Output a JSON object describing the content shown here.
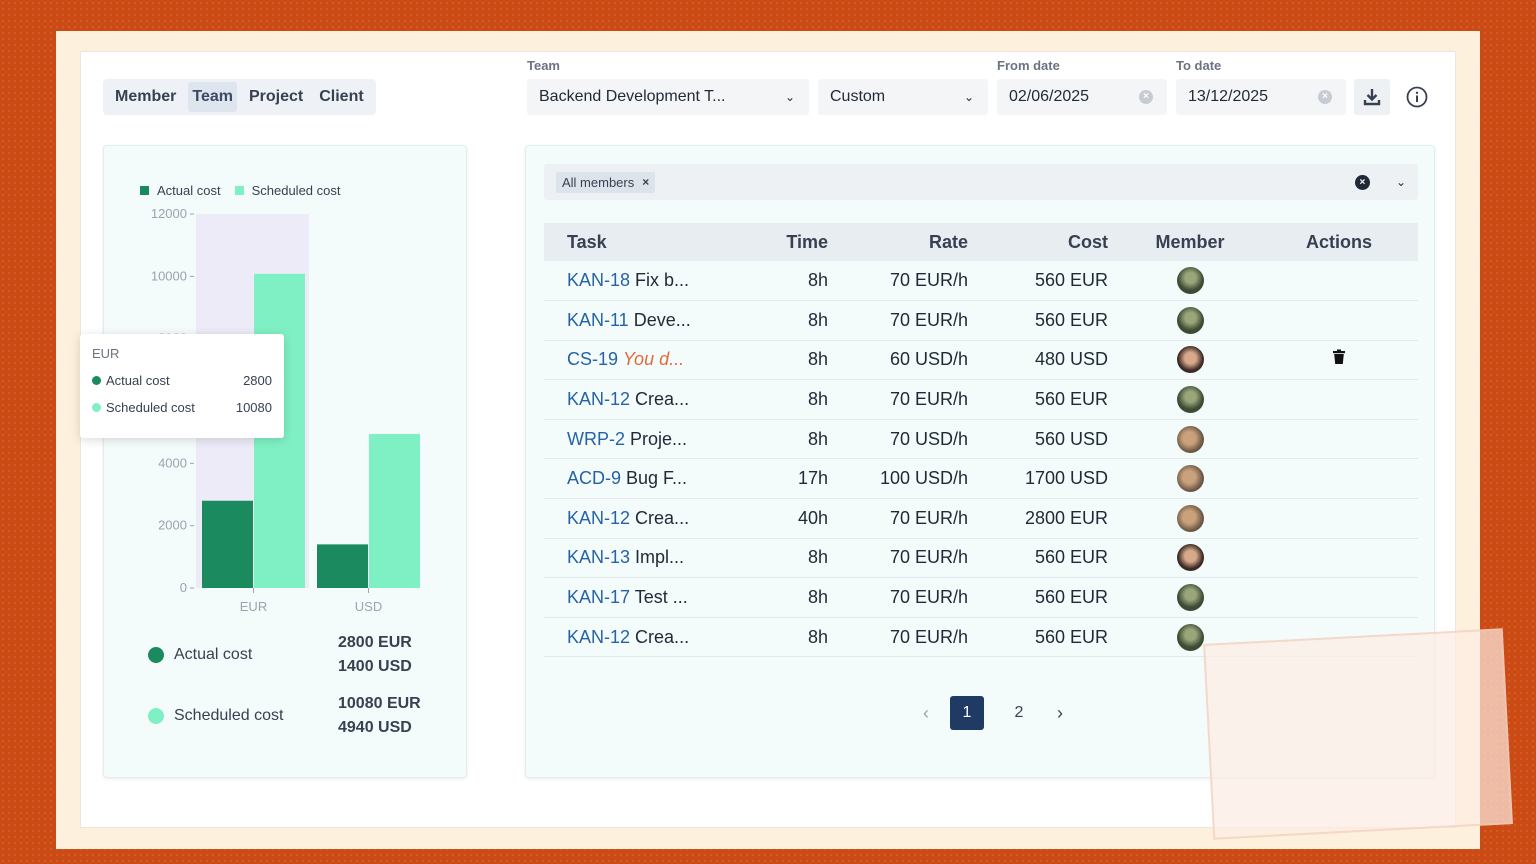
{
  "toolbar": {
    "view_tabs": [
      "Member",
      "Team",
      "Project",
      "Client"
    ],
    "active_tab": "Team",
    "team_label": "Team",
    "team_value": "Backend Development T...",
    "range_value": "Custom",
    "from_label": "From date",
    "from_value": "02/06/2025",
    "to_label": "To date",
    "to_value": "13/12/2025"
  },
  "chart": {
    "legend": [
      "Actual cost",
      "Scheduled cost"
    ],
    "tooltip": {
      "currency": "EUR",
      "actual_label": "Actual cost",
      "actual_value": "2800",
      "scheduled_label": "Scheduled cost",
      "scheduled_value": "10080"
    },
    "summary": {
      "actual_label": "Actual cost",
      "actual_eur": "2800 EUR",
      "actual_usd": "1400 USD",
      "scheduled_label": "Scheduled cost",
      "scheduled_eur": "10080 EUR",
      "scheduled_usd": "4940 USD"
    },
    "colors": {
      "actual": "#1b8a5e",
      "scheduled": "#7ff0c3",
      "hover": "#ecebf7"
    }
  },
  "chart_data": {
    "type": "bar",
    "categories": [
      "EUR",
      "USD"
    ],
    "series": [
      {
        "name": "Actual cost",
        "values": [
          2800,
          1400
        ]
      },
      {
        "name": "Scheduled cost",
        "values": [
          10080,
          4940
        ]
      }
    ],
    "yticks": [
      "0",
      "2000",
      "4000",
      "6000",
      "8000",
      "10000",
      "12000"
    ],
    "ylim": [
      0,
      12000
    ],
    "legend_position": "top-left",
    "grid": false
  },
  "table": {
    "filter_chip": "All members",
    "headers": {
      "task": "Task",
      "time": "Time",
      "rate": "Rate",
      "cost": "Cost",
      "member": "Member",
      "actions": "Actions"
    },
    "rows": [
      {
        "key": "KAN-18",
        "title": "Fix b...",
        "time": "8h",
        "rate": "70 EUR/h",
        "cost": "560 EUR",
        "avatar": "a",
        "overdue": false,
        "delete": false
      },
      {
        "key": "KAN-11",
        "title": "Deve...",
        "time": "8h",
        "rate": "70 EUR/h",
        "cost": "560 EUR",
        "avatar": "a",
        "overdue": false,
        "delete": false
      },
      {
        "key": "CS-19",
        "title": "You d...",
        "time": "8h",
        "rate": "60 USD/h",
        "cost": "480 USD",
        "avatar": "b",
        "overdue": true,
        "delete": true
      },
      {
        "key": "KAN-12",
        "title": "Crea...",
        "time": "8h",
        "rate": "70 EUR/h",
        "cost": "560 EUR",
        "avatar": "a",
        "overdue": false,
        "delete": false
      },
      {
        "key": "WRP-2",
        "title": "Proje...",
        "time": "8h",
        "rate": "70 USD/h",
        "cost": "560 USD",
        "avatar": "c",
        "overdue": false,
        "delete": false
      },
      {
        "key": "ACD-9",
        "title": "Bug F...",
        "time": "17h",
        "rate": "100 USD/h",
        "cost": "1700 USD",
        "avatar": "c",
        "overdue": false,
        "delete": false
      },
      {
        "key": "KAN-12",
        "title": "Crea...",
        "time": "40h",
        "rate": "70 EUR/h",
        "cost": "2800 EUR",
        "avatar": "c",
        "overdue": false,
        "delete": false
      },
      {
        "key": "KAN-13",
        "title": "Impl...",
        "time": "8h",
        "rate": "70 EUR/h",
        "cost": "560 EUR",
        "avatar": "b",
        "overdue": false,
        "delete": false
      },
      {
        "key": "KAN-17",
        "title": "Test ...",
        "time": "8h",
        "rate": "70 EUR/h",
        "cost": "560 EUR",
        "avatar": "a",
        "overdue": false,
        "delete": false
      },
      {
        "key": "KAN-12",
        "title": "Crea...",
        "time": "8h",
        "rate": "70 EUR/h",
        "cost": "560 EUR",
        "avatar": "a",
        "overdue": false,
        "delete": false
      }
    ],
    "pagination": {
      "pages": [
        "1",
        "2"
      ],
      "current": "1"
    }
  }
}
